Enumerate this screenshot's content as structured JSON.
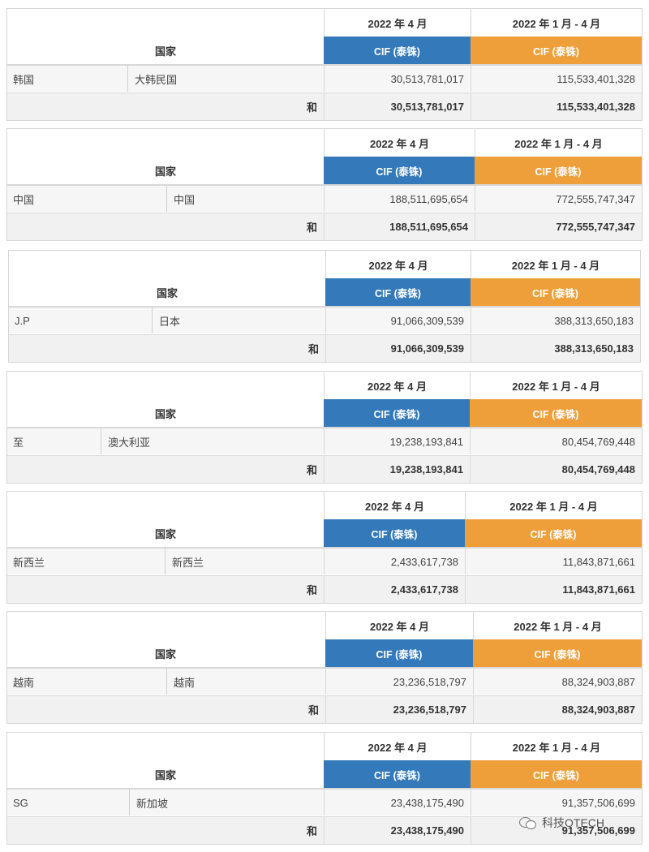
{
  "header": {
    "country": "国家",
    "period_month": "2022 年 4 月",
    "period_ytd": "2022 年 1 月 - 4 月",
    "cif": "CIF (泰铢)",
    "sum": "和"
  },
  "colors": {
    "blue": "#3479b9",
    "orange": "#ef9f3a"
  },
  "tables": [
    {
      "code": "韩国",
      "name": "大韩民国",
      "month": "30,513,781,017",
      "ytd": "115,533,401,328",
      "sum_month": "30,513,781,017",
      "sum_ytd": "115,533,401,328"
    },
    {
      "code": "中国",
      "name": "中国",
      "month": "188,511,695,654",
      "ytd": "772,555,747,347",
      "sum_month": "188,511,695,654",
      "sum_ytd": "772,555,747,347"
    },
    {
      "code": "J.P",
      "name": "日本",
      "month": "91,066,309,539",
      "ytd": "388,313,650,183",
      "sum_month": "91,066,309,539",
      "sum_ytd": "388,313,650,183"
    },
    {
      "code": "至",
      "name": "澳大利亚",
      "month": "19,238,193,841",
      "ytd": "80,454,769,448",
      "sum_month": "19,238,193,841",
      "sum_ytd": "80,454,769,448"
    },
    {
      "code": "新西兰",
      "name": "新西兰",
      "month": "2,433,617,738",
      "ytd": "11,843,871,661",
      "sum_month": "2,433,617,738",
      "sum_ytd": "11,843,871,661"
    },
    {
      "code": "越南",
      "name": "越南",
      "month": "23,236,518,797",
      "ytd": "88,324,903,887",
      "sum_month": "23,236,518,797",
      "sum_ytd": "88,324,903,887"
    },
    {
      "code": "SG",
      "name": "新加坡",
      "month": "23,438,175,490",
      "ytd": "91,357,506,699",
      "sum_month": "23,438,175,490",
      "sum_ytd": "91,357,506,699"
    }
  ],
  "watermark": "科技OTECH"
}
